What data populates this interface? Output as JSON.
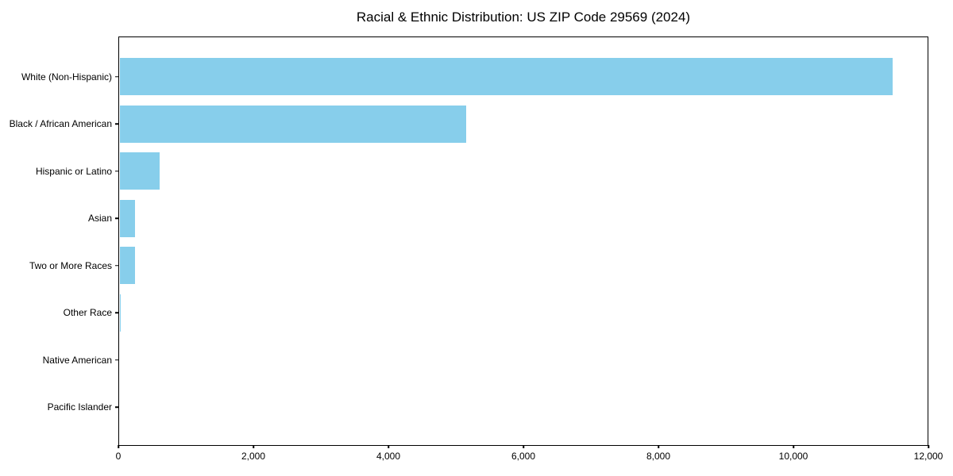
{
  "chart_data": {
    "type": "bar",
    "orientation": "horizontal",
    "title": "Racial & Ethnic Distribution: US ZIP Code 29569 (2024)",
    "categories": [
      "White (Non-Hispanic)",
      "Black / African American",
      "Hispanic or Latino",
      "Asian",
      "Two or More Races",
      "Other Race",
      "Native American",
      "Pacific Islander"
    ],
    "values": [
      11470,
      5150,
      610,
      250,
      250,
      40,
      15,
      5
    ],
    "xlabel": "",
    "ylabel": "",
    "xlim": [
      0,
      12000
    ],
    "xticks": [
      0,
      2000,
      4000,
      6000,
      8000,
      10000,
      12000
    ],
    "xtick_labels": [
      "0",
      "2,000",
      "4,000",
      "6,000",
      "8,000",
      "10,000",
      "12,000"
    ],
    "bar_color": "#87CEEB",
    "axis_color": "#000000",
    "text_color": "#000000",
    "background_color": "#ffffff",
    "grid": false,
    "legend": null
  }
}
